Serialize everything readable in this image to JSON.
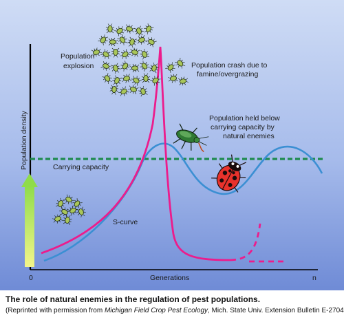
{
  "diagram": {
    "labels": {
      "explosion_line1": "Population",
      "explosion_line2": "explosion",
      "crash_line1": "Population crash due to",
      "crash_line2": "famine/overgrazing",
      "held_line1": "Population held below",
      "held_line2": "carrying capacity by",
      "held_line3": "natural enemies",
      "carrying_capacity": "Carrying capacity",
      "s_curve": "S-curve"
    },
    "axes": {
      "y_label": "Population density",
      "x_label": "Generations",
      "x_start": "0",
      "x_end": "n"
    },
    "colors": {
      "background_top": "#c9d7f3",
      "background_bottom": "#6f8bd6",
      "pest_curve": "#ec1c8c",
      "s_curve": "#3b8fd3",
      "carrying_capacity": "#1e8a4e",
      "arrow": "#bff06a"
    }
  },
  "caption": {
    "title": "The role of natural enemies in the regulation of pest populations.",
    "note_prefix": "(Reprinted with permission from ",
    "note_italic": "Michigan Field Crop Pest Ecology",
    "note_suffix": ", Mich. State Univ. Extension Bulletin E-2704.)"
  }
}
